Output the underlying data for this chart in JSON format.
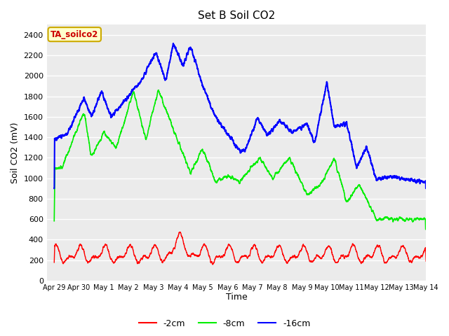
{
  "title": "Set B Soil CO2",
  "ylabel": "Soil CO2 (mV)",
  "xlabel": "Time",
  "annotation": "TA_soilco2",
  "ylim": [
    0,
    2400
  ],
  "yticks": [
    0,
    200,
    400,
    600,
    800,
    1000,
    1200,
    1400,
    1600,
    1800,
    2000,
    2200,
    2400
  ],
  "xtick_labels": [
    "Apr 29",
    "Apr 30",
    "May 1",
    "May 2",
    "May 3",
    "May 4",
    "May 5",
    "May 6",
    "May 7",
    "May 8",
    "May 9",
    "May 10",
    "May 11",
    "May 12",
    "May 13",
    "May 14"
  ],
  "fig_bg_color": "#ffffff",
  "plot_bg_color": "#ebebeb",
  "grid_color": "#ffffff",
  "line_colors": {
    "2cm": "#ff0000",
    "8cm": "#00ee00",
    "16cm": "#0000ff"
  },
  "legend_labels": [
    "-2cm",
    "-8cm",
    "-16cm"
  ],
  "annotation_bg": "#ffffcc",
  "annotation_fg": "#cc0000",
  "annotation_edge": "#ccaa00"
}
